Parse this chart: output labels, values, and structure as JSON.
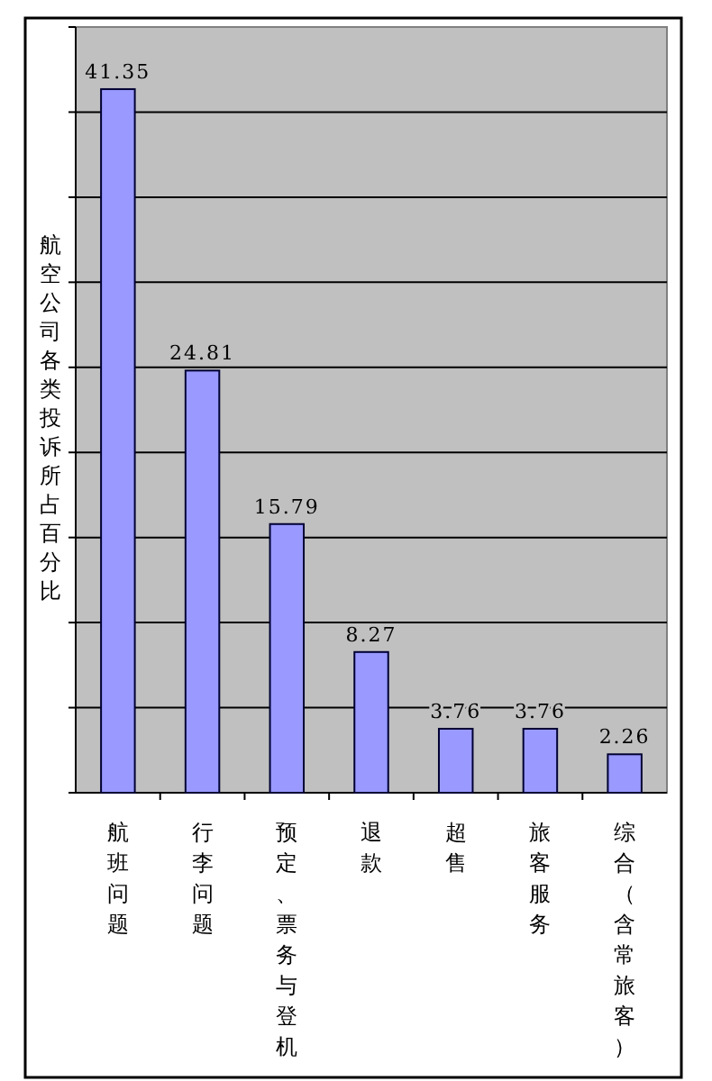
{
  "chart_data": {
    "type": "bar",
    "ylabel": "航空公司各类投诉所占百分比",
    "categories": [
      "航班问题",
      "行李问题",
      "预定、票务与登机",
      "退款",
      "超售",
      "旅客服务",
      "综合（含常旅客）"
    ],
    "values": [
      41.35,
      24.81,
      15.79,
      8.27,
      3.76,
      3.76,
      2.26
    ],
    "color": "#9999ff",
    "data_labels": true,
    "grid": "y",
    "legend": false,
    "ylim": [
      0,
      45
    ],
    "yticks": [
      {
        "value": 0,
        "label": null
      },
      {
        "value": 5,
        "label": null
      },
      {
        "value": 10,
        "label": null
      },
      {
        "value": 15,
        "label": null
      },
      {
        "value": 20,
        "label": null
      },
      {
        "value": 25,
        "label": null
      },
      {
        "value": 30,
        "label": null
      },
      {
        "value": 35,
        "label": null
      },
      {
        "value": 40,
        "label": null
      },
      {
        "value": 45,
        "label": null
      }
    ]
  }
}
